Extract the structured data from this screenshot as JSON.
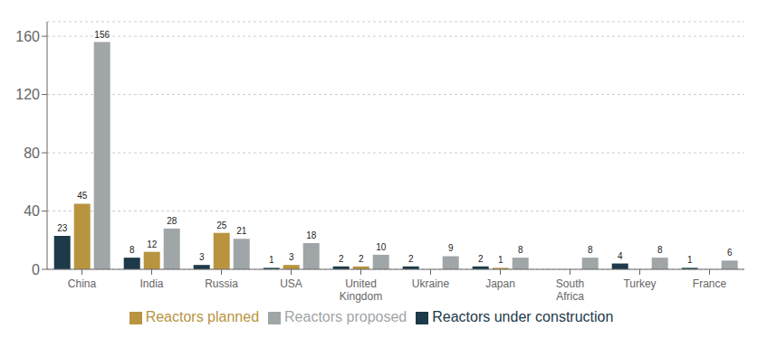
{
  "chart_data": {
    "type": "bar",
    "categories": [
      "China",
      "India",
      "Russia",
      "USA",
      "United\nKingdom",
      "Ukraine",
      "Japan",
      "South\nAfrica",
      "Turkey",
      "France"
    ],
    "series": [
      {
        "name": "Reactors under construction",
        "color": "#1c3a4a",
        "values": [
          23,
          8,
          3,
          1,
          2,
          2,
          2,
          0,
          4,
          1
        ]
      },
      {
        "name": "Reactors planned",
        "color": "#b8943f",
        "values": [
          45,
          12,
          25,
          3,
          2,
          0,
          1,
          0,
          0,
          0
        ]
      },
      {
        "name": "Reactors proposed",
        "color": "#a0a5a8",
        "values": [
          156,
          28,
          21,
          18,
          10,
          9,
          8,
          8,
          8,
          6
        ]
      }
    ],
    "ylim": [
      0,
      170
    ],
    "yticks": [
      0,
      40,
      80,
      120,
      160
    ],
    "grid": true,
    "legend": "bottom",
    "data_labels": true
  }
}
